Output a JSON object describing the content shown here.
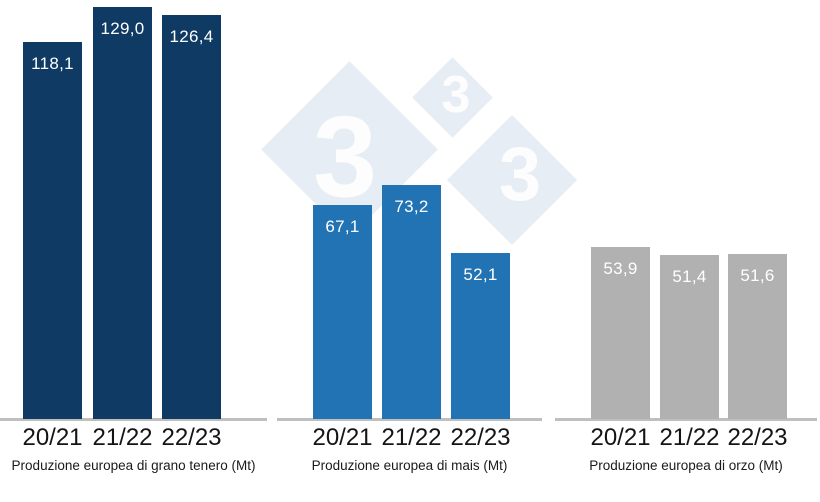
{
  "chart_data": {
    "type": "bar",
    "categories": [
      "20/21",
      "21/22",
      "22/23"
    ],
    "unit": "Mt",
    "ylim": [
      0,
      131
    ],
    "grid": false,
    "legend": false,
    "groups": [
      {
        "title": "Produzione europea di grano tenero (Mt)",
        "color": "#0e3a63",
        "values": [
          118.1,
          129.0,
          126.4
        ],
        "value_labels": [
          "118,1",
          "129,0",
          "126,4"
        ]
      },
      {
        "title": "Produzione europea di mais (Mt)",
        "color": "#2173b4",
        "values": [
          67.1,
          73.2,
          52.1
        ],
        "value_labels": [
          "67,1",
          "73,2",
          "52,1"
        ]
      },
      {
        "title": "Produzione europea di orzo (Mt)",
        "color": "#b1b1b1",
        "values": [
          53.9,
          51.4,
          51.6
        ],
        "value_labels": [
          "53,9",
          "51,4",
          "51,6"
        ]
      }
    ]
  },
  "watermark": {
    "glyph": "3",
    "diamond_color": "#e7edf5",
    "glyph_color": "#fdfdfe"
  },
  "colors": {
    "background": "#ffffff",
    "axis": "#bfbfbf",
    "tick_label": "#141414",
    "caption": "#1a1a1a",
    "value_label": "#ffffff"
  }
}
